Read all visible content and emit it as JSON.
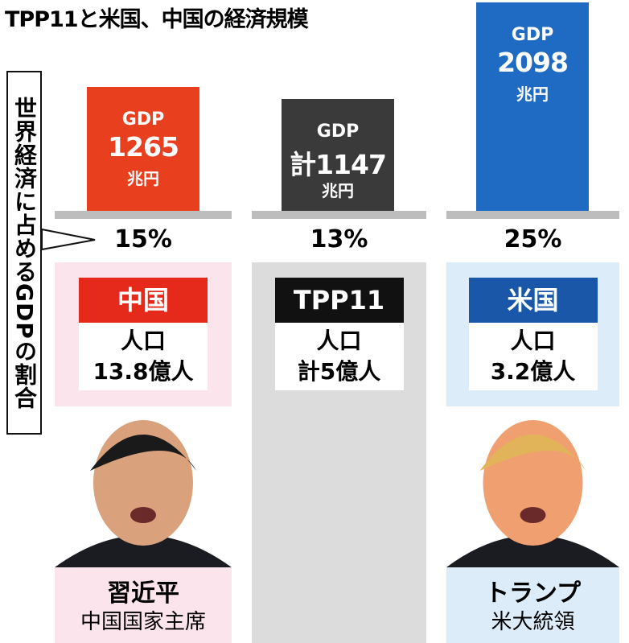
{
  "chart_data": {
    "type": "bar",
    "title": "TPP11と米国、中国の経済規模",
    "side_label": "世界経済に占めるGDPの割合",
    "gdp_title": "GDP",
    "gdp_unit": "兆円",
    "population_title": "人口",
    "columns": [
      {
        "name": "中国",
        "color": "#e8401f",
        "tag_color": "#e52a1c",
        "panel_color": "#fbe4ec",
        "gdp": 1265,
        "gdp_label": "1265",
        "share": "15%",
        "population": "13.8億人",
        "leader": "習近平",
        "leader_role": "中国国家主席"
      },
      {
        "name": "TPP11",
        "color": "#3a3a3a",
        "tag_color": "#111111",
        "panel_color": "#dcdcdc",
        "gdp": 1147,
        "gdp_label": "計1147",
        "share": "13%",
        "population": "計5億人"
      },
      {
        "name": "米国",
        "color": "#1f6bc4",
        "tag_color": "#1a57a8",
        "panel_color": "#dcedf9",
        "gdp": 2098,
        "gdp_label": "2098",
        "share": "25%",
        "population": "3.2億人",
        "leader": "トランプ",
        "leader_role": "米大統領"
      }
    ]
  }
}
